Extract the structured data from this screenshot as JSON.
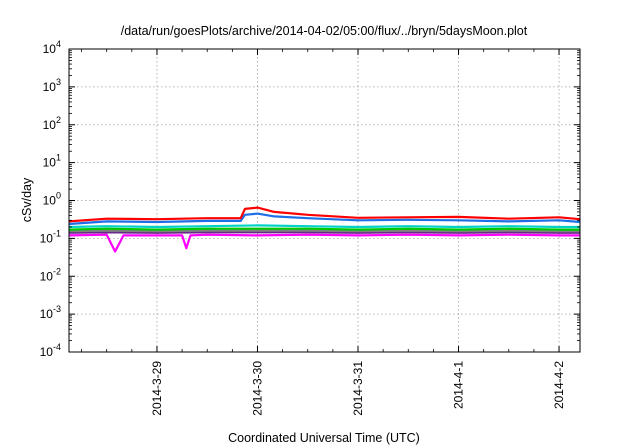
{
  "chart_data": {
    "type": "line",
    "title": "/data/run/goesPlots/archive/2014-04-02/05:00/flux/../bryn/5daysMoon.plot",
    "xlabel": "Coordinated Universal Time (UTC)",
    "ylabel": "cSv/day",
    "y_scale": "log",
    "ylim": [
      0.0001,
      10000
    ],
    "y_ticks": [
      {
        "value": 0.0001,
        "base": "10",
        "exp": "-4"
      },
      {
        "value": 0.001,
        "base": "10",
        "exp": "-3"
      },
      {
        "value": 0.01,
        "base": "10",
        "exp": "-2"
      },
      {
        "value": 0.1,
        "base": "10",
        "exp": "-1"
      },
      {
        "value": 1,
        "base": "10",
        "exp": "0"
      },
      {
        "value": 10,
        "base": "10",
        "exp": "1"
      },
      {
        "value": 100,
        "base": "10",
        "exp": "2"
      },
      {
        "value": 1000,
        "base": "10",
        "exp": "3"
      },
      {
        "value": 10000,
        "base": "10",
        "exp": "4"
      }
    ],
    "xlim": [
      "2014-03-28T03:00",
      "2014-04-02T05:00"
    ],
    "x_ticks": [
      "2014-3-29",
      "2014-3-30",
      "2014-3-31",
      "2014-4-1",
      "2014-4-2"
    ],
    "x_tick_dates": [
      "2014-03-29",
      "2014-03-30",
      "2014-03-31",
      "2014-04-01",
      "2014-04-02"
    ],
    "grid": true,
    "series": [
      {
        "color": "#ff0000",
        "x": [
          "2014-03-28T03:00",
          "2014-03-28T12:00",
          "2014-03-29T00:00",
          "2014-03-29T12:00",
          "2014-03-29T20:00",
          "2014-03-29T21:00",
          "2014-03-30T00:00",
          "2014-03-30T04:00",
          "2014-03-30T12:00",
          "2014-03-31T00:00",
          "2014-03-31T12:00",
          "2014-04-01T00:00",
          "2014-04-01T12:00",
          "2014-04-02T00:00",
          "2014-04-02T05:00"
        ],
        "values": [
          0.28,
          0.33,
          0.32,
          0.34,
          0.34,
          0.6,
          0.65,
          0.5,
          0.42,
          0.35,
          0.36,
          0.37,
          0.33,
          0.36,
          0.32
        ]
      },
      {
        "color": "#1e6ee6",
        "x": [
          "2014-03-28T03:00",
          "2014-03-28T12:00",
          "2014-03-29T00:00",
          "2014-03-29T12:00",
          "2014-03-29T20:00",
          "2014-03-29T21:00",
          "2014-03-30T00:00",
          "2014-03-30T04:00",
          "2014-03-30T12:00",
          "2014-03-31T00:00",
          "2014-03-31T12:00",
          "2014-04-01T00:00",
          "2014-04-01T12:00",
          "2014-04-02T00:00",
          "2014-04-02T05:00"
        ],
        "values": [
          0.24,
          0.28,
          0.27,
          0.29,
          0.29,
          0.42,
          0.45,
          0.38,
          0.34,
          0.3,
          0.31,
          0.3,
          0.28,
          0.3,
          0.27
        ]
      },
      {
        "color": "#00d2c8",
        "x": [
          "2014-03-28T03:00",
          "2014-03-28T12:00",
          "2014-03-29T00:00",
          "2014-03-29T12:00",
          "2014-03-30T00:00",
          "2014-03-30T12:00",
          "2014-03-31T00:00",
          "2014-03-31T12:00",
          "2014-04-01T00:00",
          "2014-04-01T12:00",
          "2014-04-02T00:00",
          "2014-04-02T05:00"
        ],
        "values": [
          0.2,
          0.21,
          0.2,
          0.21,
          0.22,
          0.21,
          0.2,
          0.21,
          0.2,
          0.21,
          0.2,
          0.2
        ]
      },
      {
        "color": "#00c800",
        "x": [
          "2014-03-28T03:00",
          "2014-03-28T12:00",
          "2014-03-29T00:00",
          "2014-03-29T12:00",
          "2014-03-30T00:00",
          "2014-03-30T12:00",
          "2014-03-31T00:00",
          "2014-03-31T12:00",
          "2014-04-01T00:00",
          "2014-04-01T12:00",
          "2014-04-02T00:00",
          "2014-04-02T05:00"
        ],
        "values": [
          0.17,
          0.18,
          0.17,
          0.18,
          0.18,
          0.18,
          0.17,
          0.18,
          0.17,
          0.18,
          0.17,
          0.17
        ]
      },
      {
        "color": "#808080",
        "x": [
          "2014-03-28T03:00",
          "2014-03-28T12:00",
          "2014-03-29T00:00",
          "2014-03-29T12:00",
          "2014-03-30T00:00",
          "2014-03-30T12:00",
          "2014-03-31T00:00",
          "2014-03-31T12:00",
          "2014-04-01T00:00",
          "2014-04-01T12:00",
          "2014-04-02T00:00",
          "2014-04-02T05:00"
        ],
        "values": [
          0.155,
          0.16,
          0.155,
          0.16,
          0.16,
          0.16,
          0.155,
          0.16,
          0.155,
          0.16,
          0.155,
          0.155
        ]
      },
      {
        "color": "#6a2a8a",
        "x": [
          "2014-03-28T03:00",
          "2014-03-28T12:00",
          "2014-03-29T00:00",
          "2014-03-29T12:00",
          "2014-03-30T00:00",
          "2014-03-30T12:00",
          "2014-03-31T00:00",
          "2014-03-31T12:00",
          "2014-04-01T00:00",
          "2014-04-01T12:00",
          "2014-04-02T00:00",
          "2014-04-02T05:00"
        ],
        "values": [
          0.14,
          0.145,
          0.14,
          0.145,
          0.145,
          0.145,
          0.14,
          0.145,
          0.14,
          0.145,
          0.14,
          0.14
        ]
      },
      {
        "color": "#ff00ff",
        "x": [
          "2014-03-28T03:00",
          "2014-03-28T12:00",
          "2014-03-28T14:00",
          "2014-03-28T16:00",
          "2014-03-29T00:00",
          "2014-03-29T06:00",
          "2014-03-29T07:00",
          "2014-03-29T08:00",
          "2014-03-29T12:00",
          "2014-03-30T00:00",
          "2014-03-30T12:00",
          "2014-03-31T00:00",
          "2014-03-31T12:00",
          "2014-04-01T00:00",
          "2014-04-01T12:00",
          "2014-04-02T00:00",
          "2014-04-02T05:00"
        ],
        "values": [
          0.12,
          0.125,
          0.045,
          0.12,
          0.12,
          0.12,
          0.055,
          0.12,
          0.125,
          0.12,
          0.125,
          0.12,
          0.125,
          0.12,
          0.125,
          0.12,
          0.12
        ]
      }
    ]
  }
}
